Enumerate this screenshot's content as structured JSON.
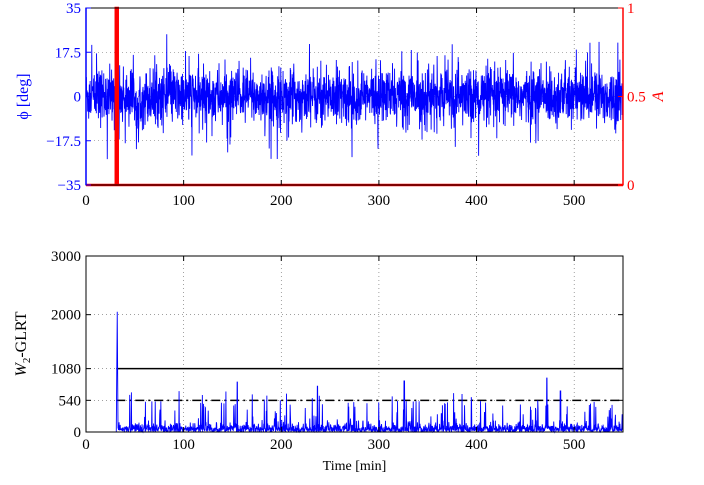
{
  "chart_data": [
    {
      "type": "line",
      "xlim": [
        0,
        550
      ],
      "ylim": [
        -35,
        35
      ],
      "ylim_right": [
        0,
        1
      ],
      "x_ticks": [
        0,
        100,
        200,
        300,
        400,
        500
      ],
      "x_tick_labels": [
        "0",
        "100",
        "200",
        "300",
        "400",
        "500"
      ],
      "y_ticks": [
        -35,
        -17.5,
        0,
        17.5,
        35
      ],
      "y_tick_labels": [
        "−35",
        "−17.5",
        "0",
        "17.5",
        "35"
      ],
      "y2_ticks": [
        0,
        0.5,
        1
      ],
      "y2_tick_labels": [
        "0",
        "0.5",
        "1"
      ],
      "ylabel": "ϕ [deg]",
      "ylabel_right": "A",
      "grid": true,
      "left_axis_color": "#0000ff",
      "right_axis_color": "#ff0000",
      "series": [
        {
          "color": "#0000ff",
          "axis": "left",
          "kind": "noise",
          "mean": 0,
          "typical_range": [
            -12,
            12
          ],
          "extremes": [
            -25,
            28
          ]
        },
        {
          "color": "#ff0000",
          "axis": "right",
          "kind": "step",
          "x": [
            0,
            30.5,
            30.5,
            32.5,
            32.5,
            550
          ],
          "y": [
            0,
            0,
            1,
            1,
            0,
            0
          ]
        }
      ]
    },
    {
      "type": "line",
      "xlim": [
        0,
        550
      ],
      "ylim": [
        0,
        3000
      ],
      "x_ticks": [
        0,
        100,
        200,
        300,
        400,
        500
      ],
      "x_tick_labels": [
        "0",
        "100",
        "200",
        "300",
        "400",
        "500"
      ],
      "y_ticks": [
        0,
        540,
        1080,
        2000,
        3000
      ],
      "y_tick_labels": [
        "0",
        "540",
        "1080",
        "2000",
        "3000"
      ],
      "ylabel_text": "-GLRT",
      "ylabel_symbol": "W",
      "ylabel_subscript": "2",
      "xlabel": "Time [min]",
      "grid": true,
      "series": [
        {
          "color": "#0000ff",
          "kind": "detector",
          "peak": {
            "x": 32,
            "y": 2050
          },
          "start_x": 31,
          "notable_peaks": [
            {
              "x": 155,
              "y": 850
            },
            {
              "x": 237,
              "y": 780
            },
            {
              "x": 326,
              "y": 870
            },
            {
              "x": 472,
              "y": 920
            },
            {
              "x": 486,
              "y": 700
            }
          ]
        }
      ],
      "thresholds": [
        {
          "y": 1080,
          "style": "solid",
          "color": "#000000"
        },
        {
          "y": 540,
          "style": "dashdot",
          "color": "#000000"
        }
      ]
    }
  ]
}
